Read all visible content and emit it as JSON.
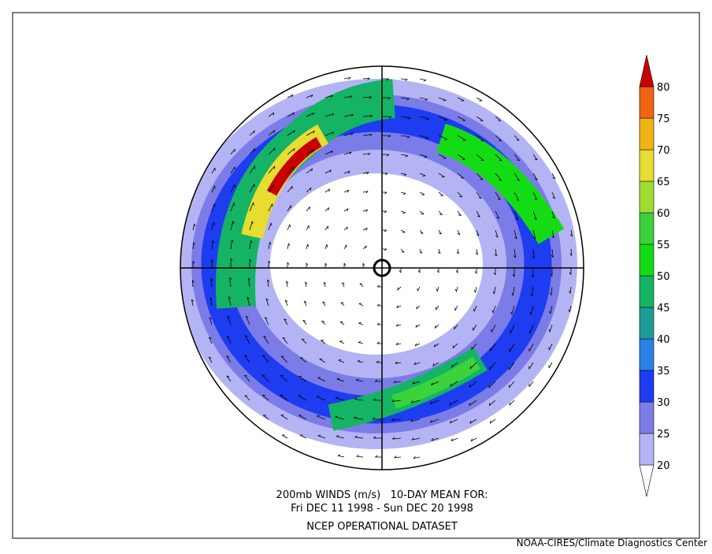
{
  "caption": {
    "line1": "200mb WINDS (m/s)   10-DAY MEAN FOR:",
    "line2": "Fri DEC 11 1998 - Sun DEC 20 1998",
    "line3": "NCEP OPERATIONAL DATASET"
  },
  "credit": "NOAA-CIRES/Climate Diagnostics Center",
  "colorbar": {
    "levels": [
      20,
      25,
      30,
      35,
      40,
      45,
      50,
      55,
      60,
      65,
      70,
      75,
      80
    ],
    "colors": [
      "#ffffff",
      "#b4b4f5",
      "#7c7ce8",
      "#1e3cf0",
      "#2a80e6",
      "#1e9a96",
      "#14b464",
      "#14dc14",
      "#3cd23c",
      "#a0dc32",
      "#e6dc32",
      "#f0b414",
      "#f06414",
      "#c80000"
    ]
  }
}
